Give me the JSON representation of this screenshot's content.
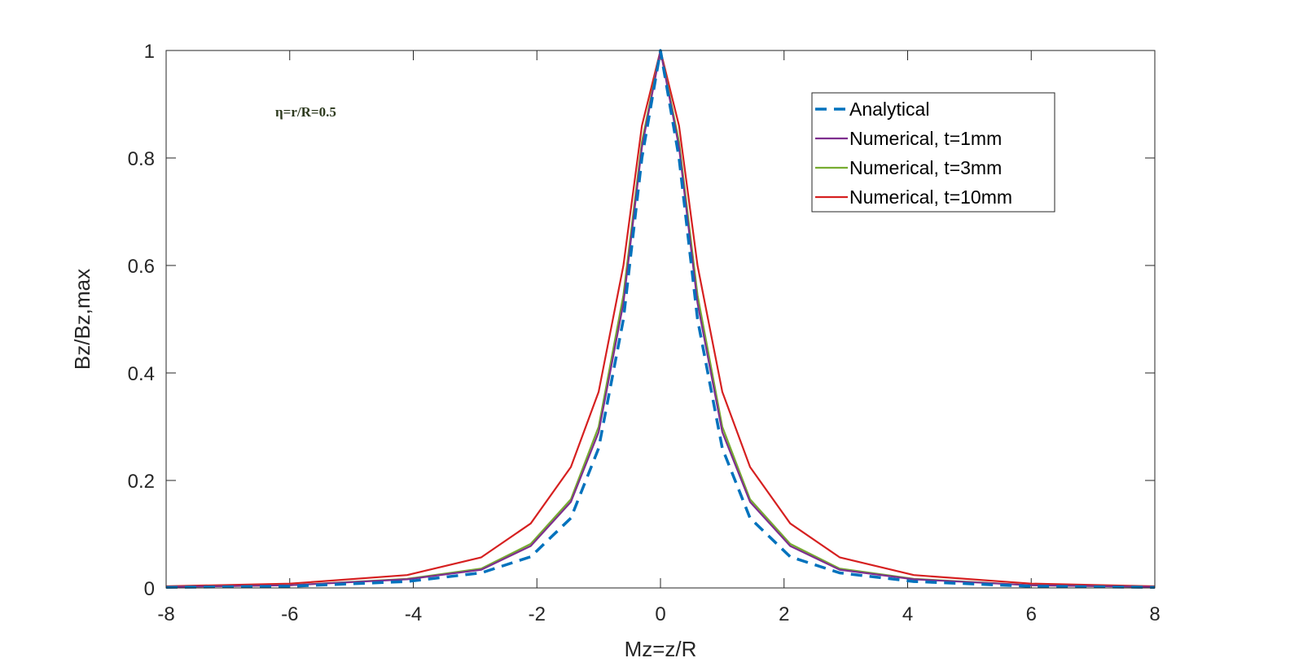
{
  "chart_data": {
    "type": "line",
    "title": "",
    "xlabel": "Mz=z/R",
    "ylabel": "Bz/Bz,max",
    "xlim": [
      -8,
      8
    ],
    "ylim": [
      0,
      1
    ],
    "xticks": [
      -8,
      -6,
      -4,
      -2,
      0,
      2,
      4,
      6,
      8
    ],
    "yticks": [
      0,
      0.2,
      0.4,
      0.6,
      0.8,
      1
    ],
    "xtick_labels": [
      "-8",
      "-6",
      "-4",
      "-2",
      "0",
      "2",
      "4",
      "6",
      "8"
    ],
    "ytick_labels": [
      "0",
      "0.2",
      "0.4",
      "0.6",
      "0.8",
      "1"
    ],
    "grid": false,
    "legend_position": "top-right",
    "annotation": "η=r/R=0.5",
    "series": [
      {
        "name": "Analytical",
        "color": "#0072BD",
        "style": "dashed",
        "x": [
          -8,
          -6,
          -4.1,
          -2.9,
          -2.1,
          -1.45,
          -1.0,
          -0.6,
          -0.3,
          0,
          0.3,
          0.6,
          1.0,
          1.45,
          2.1,
          2.9,
          4.1,
          6,
          8
        ],
        "y": [
          0.001,
          0.003,
          0.012,
          0.028,
          0.058,
          0.13,
          0.26,
          0.5,
          0.8,
          1.0,
          0.8,
          0.5,
          0.26,
          0.13,
          0.058,
          0.028,
          0.012,
          0.003,
          0.001
        ]
      },
      {
        "name": "Numerical, t=1mm",
        "color": "#7E2F8E",
        "style": "solid",
        "x": [
          -8,
          -6,
          -4.1,
          -2.9,
          -2.1,
          -1.45,
          -1.0,
          -0.6,
          -0.3,
          0,
          0.3,
          0.6,
          1.0,
          1.45,
          2.1,
          2.9,
          4.1,
          6,
          8
        ],
        "y": [
          0.002,
          0.005,
          0.016,
          0.034,
          0.078,
          0.16,
          0.29,
          0.53,
          0.82,
          1.0,
          0.82,
          0.53,
          0.29,
          0.16,
          0.078,
          0.034,
          0.016,
          0.005,
          0.002
        ]
      },
      {
        "name": "Numerical, t=3mm",
        "color": "#77AC30",
        "style": "solid",
        "x": [
          -8,
          -6,
          -4.1,
          -2.9,
          -2.1,
          -1.45,
          -1.0,
          -0.6,
          -0.3,
          0,
          0.3,
          0.6,
          1.0,
          1.45,
          2.1,
          2.9,
          4.1,
          6,
          8
        ],
        "y": [
          0.002,
          0.005,
          0.017,
          0.036,
          0.082,
          0.165,
          0.3,
          0.545,
          0.83,
          1.0,
          0.83,
          0.545,
          0.3,
          0.165,
          0.082,
          0.036,
          0.017,
          0.005,
          0.002
        ]
      },
      {
        "name": "Numerical, t=10mm",
        "color": "#D62020",
        "style": "solid",
        "x": [
          -8,
          -6,
          -4.1,
          -2.9,
          -2.1,
          -1.45,
          -1.0,
          -0.6,
          -0.3,
          0,
          0.3,
          0.6,
          1.0,
          1.45,
          2.1,
          2.9,
          4.1,
          6,
          8
        ],
        "y": [
          0.003,
          0.008,
          0.024,
          0.057,
          0.12,
          0.225,
          0.365,
          0.6,
          0.86,
          1.0,
          0.86,
          0.6,
          0.365,
          0.225,
          0.12,
          0.057,
          0.024,
          0.008,
          0.003
        ]
      }
    ]
  }
}
